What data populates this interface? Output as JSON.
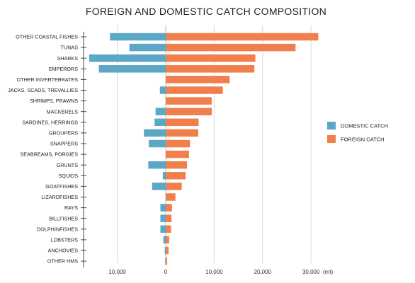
{
  "chart_data": {
    "type": "bar",
    "orientation": "horizontal-diverging",
    "title": "FOREIGN AND DOMESTIC CATCH COMPOSITION",
    "unit_label": "(mt)",
    "categories": [
      "OTHER COASTAL FISHES",
      "TUNAS",
      "SHARKS",
      "EMPERORS",
      "OTHER INVERTEBRATES",
      "JACKS, SCADS, TREVALLIES",
      "SHRIMPS, PRAWNS",
      "MACKERELS",
      "SARDINES, HERRINGS",
      "GROUPERS",
      "SNAPPERS",
      "SEABREAMS, PORGIES",
      "GRUNTS",
      "SQUIDS",
      "GOATFISHES",
      "LIZARDFISHES",
      "RAYS",
      "BILLFISHES",
      "DOLPHINFISHES",
      "LOBSTERS",
      "ANCHOVIES",
      "OTHER HMS"
    ],
    "series": [
      {
        "name": "DOMESTIC CATCH",
        "color": "#5ba7c6",
        "direction": "left",
        "values": [
          11500,
          7500,
          15800,
          13800,
          0,
          1200,
          0,
          2100,
          2300,
          4500,
          3500,
          0,
          3600,
          600,
          2800,
          0,
          1100,
          1100,
          1100,
          500,
          200,
          100
        ]
      },
      {
        "name": "FOREIGN CATCH",
        "color": "#f07f4c",
        "direction": "right",
        "values": [
          31500,
          26800,
          18500,
          18300,
          13200,
          11800,
          9500,
          9500,
          6800,
          6700,
          5000,
          4800,
          4400,
          4100,
          3300,
          2000,
          1300,
          1200,
          1100,
          700,
          600,
          300
        ]
      }
    ],
    "x_ticks": [
      {
        "value": -10000,
        "label": "10,000"
      },
      {
        "value": 0,
        "label": "0"
      },
      {
        "value": 10000,
        "label": "10,000"
      },
      {
        "value": 20000,
        "label": "20,000"
      },
      {
        "value": 30000,
        "label": "30,000"
      }
    ],
    "xlim": [
      -16500,
      33500
    ],
    "grid": "vertical",
    "legend_position": "right"
  }
}
